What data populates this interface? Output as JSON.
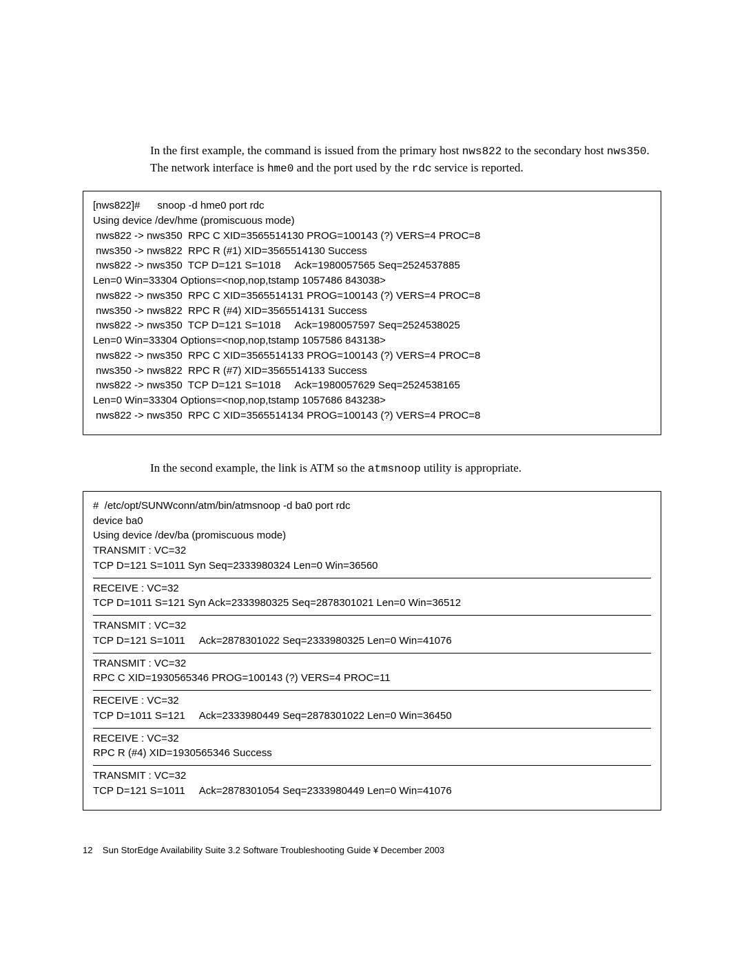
{
  "paragraph1": {
    "pre": "In the first example, the command is issued from the primary host ",
    "mono1": "nws822",
    "mid1": " to the secondary host ",
    "mono2": "nws350",
    "mid2": ". The network interface is ",
    "mono3": "hme0",
    "mid3": " and the port used by the ",
    "mono4": "rdc",
    "post": " service is reported."
  },
  "codebox1": {
    "lines": [
      "[nws822]#      snoop -d hme0 port rdc",
      "Using device /dev/hme (promiscuous mode)",
      " nws822 -> nws350  RPC C XID=3565514130 PROG=100143 (?) VERS=4 PROC=8",
      " nws350 -> nws822  RPC R (#1) XID=3565514130 Success",
      " nws822 -> nws350  TCP D=121 S=1018     Ack=1980057565 Seq=2524537885",
      "Len=0 Win=33304 Options=<nop,nop,tstamp 1057486 843038>",
      " nws822 -> nws350  RPC C XID=3565514131 PROG=100143 (?) VERS=4 PROC=8",
      " nws350 -> nws822  RPC R (#4) XID=3565514131 Success",
      " nws822 -> nws350  TCP D=121 S=1018     Ack=1980057597 Seq=2524538025",
      "Len=0 Win=33304 Options=<nop,nop,tstamp 1057586 843138>",
      " nws822 -> nws350  RPC C XID=3565514133 PROG=100143 (?) VERS=4 PROC=8",
      " nws350 -> nws822  RPC R (#7) XID=3565514133 Success",
      " nws822 -> nws350  TCP D=121 S=1018     Ack=1980057629 Seq=2524538165",
      "Len=0 Win=33304 Options=<nop,nop,tstamp 1057686 843238>",
      " nws822 -> nws350  RPC C XID=3565514134 PROG=100143 (?) VERS=4 PROC=8"
    ]
  },
  "paragraph2": {
    "pre": "In the second example, the link is ATM so the ",
    "mono1": "atmsnoop",
    "post": " utility is appropriate."
  },
  "codebox2": {
    "sections": [
      {
        "lines": [
          "#  /etc/opt/SUNWconn/atm/bin/atmsnoop -d ba0 port rdc",
          "device ba0",
          "Using device /dev/ba (promiscuous mode)",
          "TRANSMIT : VC=32",
          "TCP D=121 S=1011 Syn Seq=2333980324 Len=0 Win=36560"
        ]
      },
      {
        "lines": [
          "RECEIVE : VC=32",
          "TCP D=1011 S=121 Syn Ack=2333980325 Seq=2878301021 Len=0 Win=36512"
        ]
      },
      {
        "lines": [
          "TRANSMIT : VC=32",
          "TCP D=121 S=1011     Ack=2878301022 Seq=2333980325 Len=0 Win=41076"
        ]
      },
      {
        "lines": [
          "TRANSMIT : VC=32",
          "RPC C XID=1930565346 PROG=100143 (?) VERS=4 PROC=11"
        ]
      },
      {
        "lines": [
          "RECEIVE : VC=32",
          "TCP D=1011 S=121     Ack=2333980449 Seq=2878301022 Len=0 Win=36450"
        ]
      },
      {
        "lines": [
          "RECEIVE : VC=32",
          "RPC R (#4) XID=1930565346 Success"
        ]
      },
      {
        "lines": [
          "TRANSMIT : VC=32",
          "TCP D=121 S=1011     Ack=2878301054 Seq=2333980449 Len=0 Win=41076"
        ]
      }
    ]
  },
  "footer": {
    "page_number": "12",
    "title": "Sun StorEdge Availability Suite 3.2 Software Troubleshooting Guide ¥ December 2003"
  }
}
